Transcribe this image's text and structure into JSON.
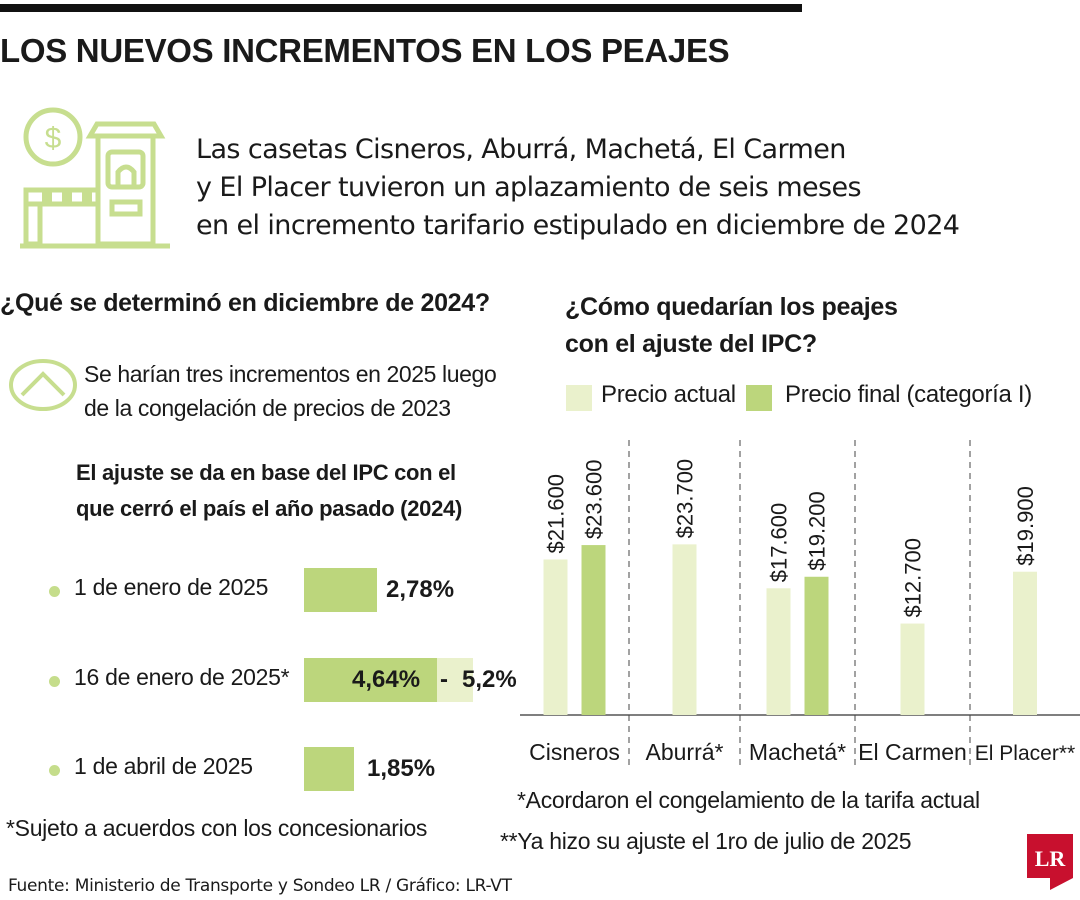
{
  "title": "LOS NUEVOS INCREMENTOS EN LOS PEAJES",
  "intro_lines": [
    "Las casetas Cisneros, Aburrá, Machetá, El Carmen",
    "y El Placer tuvieron un aplazamiento de seis meses",
    "en el incremento tarifario estipulado en diciembre de 2024"
  ],
  "left": {
    "heading": "¿Qué se determinó en diciembre de 2024?",
    "note_lines": [
      "Se harían tres incrementos en 2025 luego",
      "de la congelación de precios de 2023"
    ],
    "basis_lines": [
      "El ajuste se da en base del IPC con el",
      "que cerró el país el año pasado (2024)"
    ],
    "increments": [
      {
        "label": "1 de enero de 2025",
        "value": "2,78%",
        "percent": 2.78
      },
      {
        "label": "16 de enero de 2025*",
        "value": "4,64%",
        "range_sep": "-",
        "range_end": "5,2%",
        "percent": 4.64,
        "percent_end": 5.2
      },
      {
        "label": "1 de abril de 2025",
        "value": "1,85%",
        "percent": 1.85
      }
    ],
    "footnote": "*Sujeto a acuerdos con los concesionarios"
  },
  "right": {
    "heading_lines": [
      "¿Cómo quedarían los peajes",
      "con el ajuste del IPC?"
    ],
    "footnotes": [
      "*Acordaron el congelamiento de la tarifa actual",
      "**Ya hizo su ajuste el 1ro de julio de 2025"
    ]
  },
  "source": "Fuente: Ministerio de Transporte y Sondeo LR / Gráfico: LR-VT",
  "logo_text": "LR",
  "colors": {
    "light": "#eaf1cc",
    "dark": "#bcd67c",
    "accent": "#c7de8f",
    "logo": "#c8102e"
  },
  "chart_data": {
    "type": "bar",
    "title": "¿Cómo quedarían los peajes con el ajuste del IPC?",
    "categories": [
      "Cisneros",
      "Aburrá*",
      "Machetá*",
      "El Carmen",
      "El Placer**"
    ],
    "series": [
      {
        "name": "Precio actual",
        "values": [
          21600,
          23700,
          17600,
          12700,
          19900
        ],
        "labels": [
          "$21.600",
          "$23.700",
          "$17.600",
          "$12.700",
          "$19.900"
        ]
      },
      {
        "name": "Precio final (categoría I)",
        "values": [
          23600,
          null,
          19200,
          null,
          null
        ],
        "labels": [
          "$23.600",
          null,
          "$19.200",
          null,
          null
        ]
      }
    ],
    "ylim": [
      0,
      25000
    ],
    "grid": false,
    "legend": "top"
  }
}
